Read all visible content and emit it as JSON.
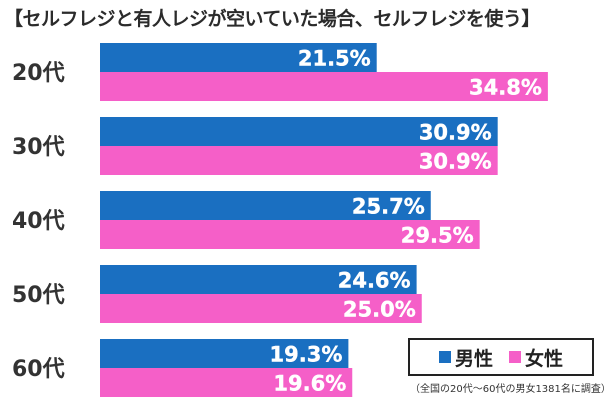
{
  "chart_data": {
    "type": "bar",
    "orientation": "horizontal",
    "title": "【セルフレジと有人レジが空いていた場合、セルフレジを使う】",
    "categories": [
      "20代",
      "30代",
      "40代",
      "50代",
      "60代"
    ],
    "series": [
      {
        "name": "男性",
        "color": "#1a6fc1",
        "values": [
          21.5,
          30.9,
          25.7,
          24.6,
          19.3
        ]
      },
      {
        "name": "女性",
        "color": "#f55fc8",
        "values": [
          34.8,
          30.9,
          29.5,
          25.0,
          19.6
        ]
      }
    ],
    "value_suffix": "%",
    "xlim": [
      0,
      40
    ],
    "grid": false,
    "legend_position": "bottom-right",
    "note": "（全国の20代～60代の男女1381名に調査）"
  }
}
